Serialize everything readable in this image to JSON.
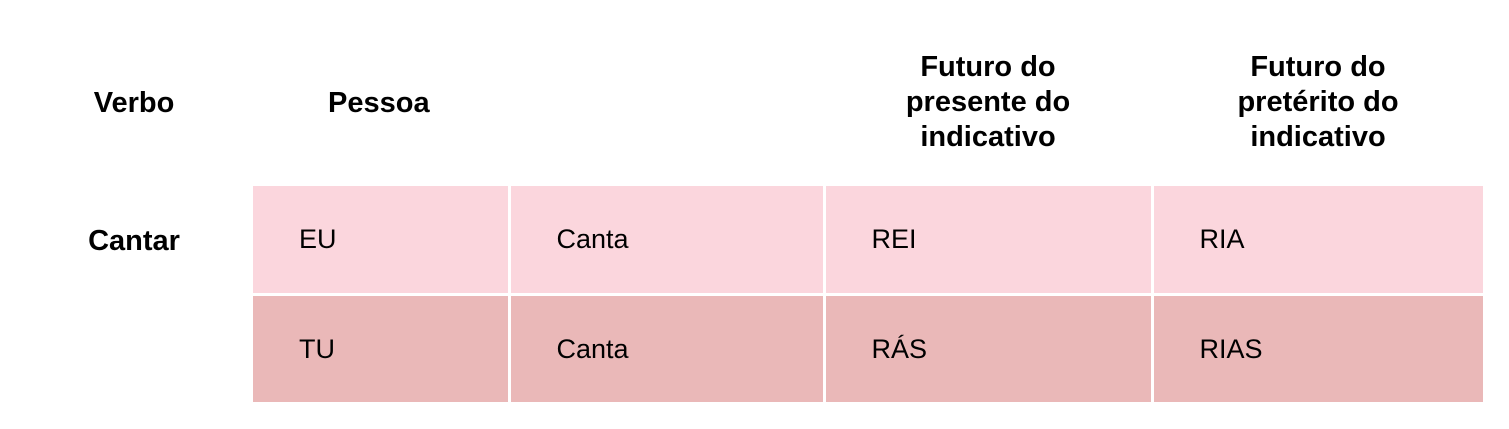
{
  "headers": {
    "verbo": "Verbo",
    "pessoa": "Pessoa",
    "futuro_presente": "Futuro do presente do indicativo",
    "futuro_preterito": "Futuro do pretérito do indicativo"
  },
  "verb": "Cantar",
  "rows": [
    {
      "pessoa": "EU",
      "radical": "Canta",
      "futuro_presente": "REI",
      "futuro_preterito": "RIA"
    },
    {
      "pessoa": "TU",
      "radical": "Canta",
      "futuro_presente": "RÁS",
      "futuro_preterito": "RIAS"
    }
  ],
  "colors": {
    "row_light": "#fbd6dd",
    "row_dark": "#eab8b8"
  }
}
